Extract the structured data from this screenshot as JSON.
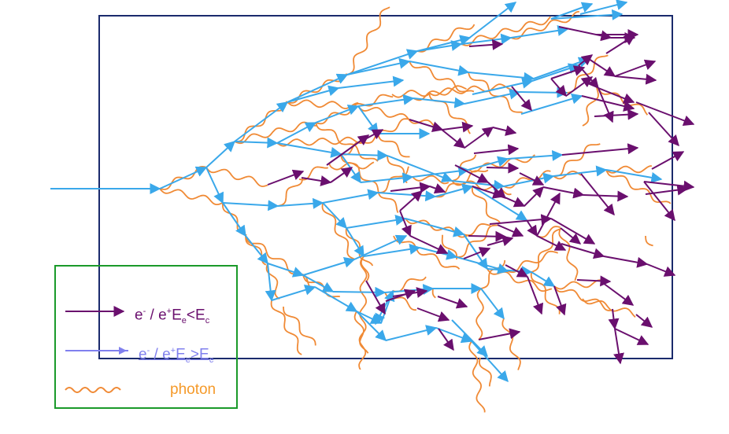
{
  "colors": {
    "frame": "#1a2a6c",
    "low_energy": "#6a0f6e",
    "high_energy": "#3aa8ea",
    "photon": "#f08a35",
    "legend_border": "#1a9a2a",
    "legend_high_text": "#8080ee",
    "legend_photon_text": "#f59a2a"
  },
  "legend": {
    "low": {
      "prefix": "e",
      "sup1": "-",
      "mid": " / e",
      "sup2": "+",
      "E": "E",
      "sub1": "e",
      "rel": "<",
      "E2": "E",
      "sub2": "c"
    },
    "high": {
      "prefix": "e",
      "sup1": "-",
      "mid": " / e",
      "sup2": "+",
      "E": "E",
      "sub1": "e",
      "rel": ">",
      "E2": "E",
      "sub2": "c"
    },
    "photon": "photon"
  }
}
